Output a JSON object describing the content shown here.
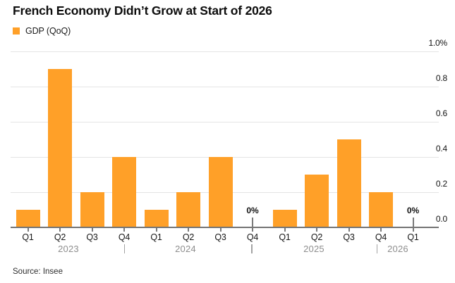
{
  "header": {
    "title": "French Economy Didn’t Grow at Start of 2026",
    "legend": {
      "label": "GDP (QoQ)",
      "swatch_color": "#FFA028"
    }
  },
  "chart_data": {
    "type": "bar",
    "title": "French Economy Didn’t Grow at Start of 2026",
    "series_name": "GDP (QoQ)",
    "unit": "% quarter-over-quarter",
    "categories": [
      "Q1 2023",
      "Q2 2023",
      "Q3 2023",
      "Q4 2023",
      "Q1 2024",
      "Q2 2024",
      "Q3 2024",
      "Q4 2024",
      "Q1 2025",
      "Q2 2025",
      "Q3 2025",
      "Q4 2025",
      "Q1 2026"
    ],
    "x_tick_labels": [
      "Q1",
      "Q2",
      "Q3",
      "Q4",
      "Q1",
      "Q2",
      "Q3",
      "Q4",
      "Q1",
      "Q2",
      "Q3",
      "Q4",
      "Q1"
    ],
    "year_labels": [
      "2023",
      "2024",
      "2025",
      "2026"
    ],
    "values": [
      0.1,
      0.9,
      0.2,
      0.4,
      0.1,
      0.2,
      0.4,
      0,
      0.1,
      0.3,
      0.5,
      0.2,
      0
    ],
    "zero_value_label": "0%",
    "bar_color": "#FFA028",
    "ylim": [
      0,
      1.0
    ],
    "grid": true,
    "legend_position": "top-left",
    "y_axis_side": "right",
    "y_ticks": [
      {
        "v": 0.0,
        "label": "0.0"
      },
      {
        "v": 0.2,
        "label": "0.2"
      },
      {
        "v": 0.4,
        "label": "0.4"
      },
      {
        "v": 0.6,
        "label": "0.6"
      },
      {
        "v": 0.8,
        "label": "0.8"
      },
      {
        "v": 1.0,
        "label": "1.0%"
      }
    ]
  },
  "footer": {
    "source": "Source: Insee"
  }
}
